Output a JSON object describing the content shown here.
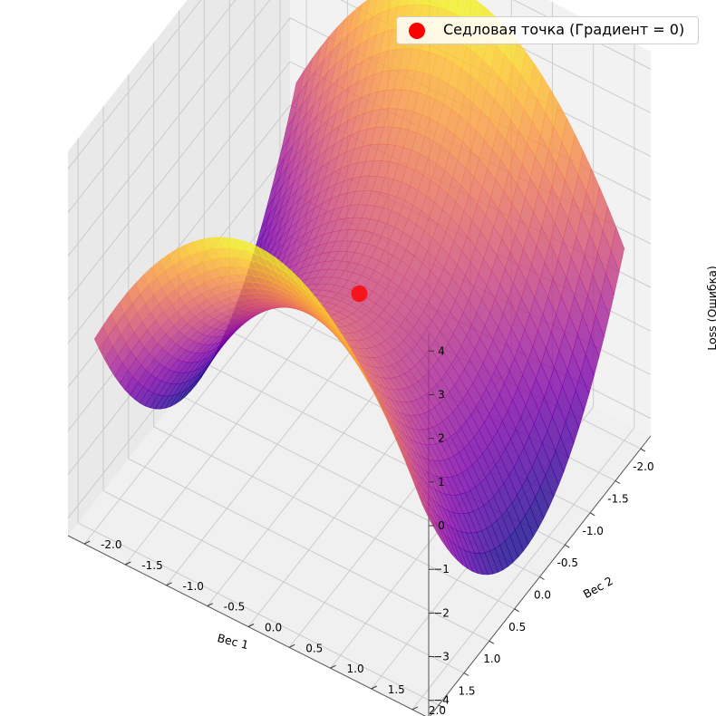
{
  "chart_data": {
    "type": "surface",
    "function": "z = w1^2 - w2^2",
    "xlabel": "Вес 1",
    "ylabel": "Вес 2",
    "zlabel": "Loss (Ошибка)",
    "xlim": [
      -2.2,
      2.2
    ],
    "ylim": [
      -2.2,
      2.2
    ],
    "zlim": [
      -4.4,
      4.4
    ],
    "x_ticks": [
      "-2.0",
      "-1.5",
      "-1.0",
      "-0.5",
      "0.0",
      "0.5",
      "1.0",
      "1.5",
      "2.0"
    ],
    "y_ticks": [
      "-2.0",
      "-1.5",
      "-1.0",
      "-0.5",
      "0.0",
      "0.5",
      "1.0",
      "1.5",
      "2.0"
    ],
    "z_ticks": [
      "−4",
      "−3",
      "−2",
      "−1",
      "0",
      "1",
      "2",
      "3",
      "4"
    ],
    "colormap": "plasma",
    "surface_alpha": 0.8,
    "grid": true,
    "legend_position": "top-right",
    "series": [
      {
        "name": "Седловая точка (Градиент = 0)",
        "type": "scatter",
        "x": [
          0
        ],
        "y": [
          0
        ],
        "z": [
          0
        ],
        "color": "#ff0000"
      }
    ]
  }
}
